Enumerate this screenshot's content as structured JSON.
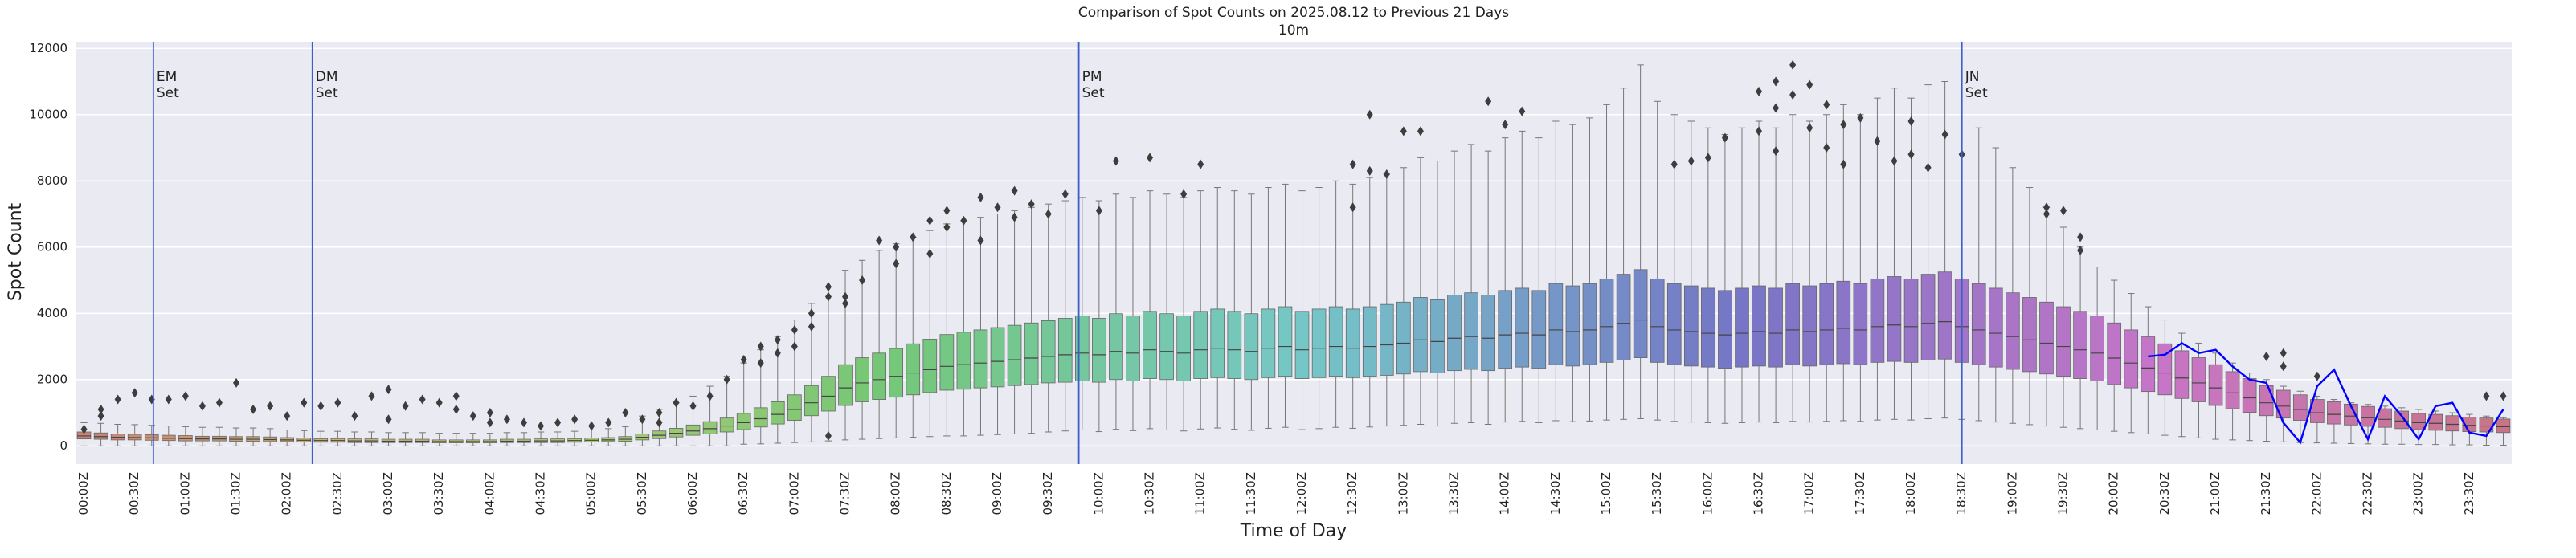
{
  "chart_data": {
    "type": "box",
    "title": "Comparison of Spot Counts on 2025.08.12 to Previous 21 Days",
    "subtitle": "10m",
    "x_label": "Time of Day",
    "y_label": "Spot Count",
    "palette": "husl",
    "grid": true,
    "ylim": [
      -550,
      12200
    ],
    "yticks": [
      0,
      2000,
      4000,
      6000,
      8000,
      10000,
      12000
    ],
    "categories": [
      "00:00Z",
      null,
      null,
      "00:30Z",
      null,
      null,
      "01:00Z",
      null,
      null,
      "01:30Z",
      null,
      null,
      "02:00Z",
      null,
      null,
      "02:30Z",
      null,
      null,
      "03:00Z",
      null,
      null,
      "03:30Z",
      null,
      null,
      "04:00Z",
      null,
      null,
      "04:30Z",
      null,
      null,
      "05:00Z",
      null,
      null,
      "05:30Z",
      null,
      null,
      "06:00Z",
      null,
      null,
      "06:30Z",
      null,
      null,
      "07:00Z",
      null,
      null,
      "07:30Z",
      null,
      null,
      "08:00Z",
      null,
      null,
      "08:30Z",
      null,
      null,
      "09:00Z",
      null,
      null,
      "09:30Z",
      null,
      null,
      "10:00Z",
      null,
      null,
      "10:30Z",
      null,
      null,
      "11:00Z",
      null,
      null,
      "11:30Z",
      null,
      null,
      "12:00Z",
      null,
      null,
      "12:30Z",
      null,
      null,
      "13:00Z",
      null,
      null,
      "13:30Z",
      null,
      null,
      "14:00Z",
      null,
      null,
      "14:30Z",
      null,
      null,
      "15:00Z",
      null,
      null,
      "15:30Z",
      null,
      null,
      "16:00Z",
      null,
      null,
      "16:30Z",
      null,
      null,
      "17:00Z",
      null,
      null,
      "17:30Z",
      null,
      null,
      "18:00Z",
      null,
      null,
      "18:30Z",
      null,
      null,
      "19:00Z",
      null,
      null,
      "19:30Z",
      null,
      null,
      "20:00Z",
      null,
      null,
      "20:30Z",
      null,
      null,
      "21:00Z",
      null,
      null,
      "21:30Z",
      null,
      null,
      "22:00Z",
      null,
      null,
      "22:30Z",
      null,
      null,
      "23:00Z",
      null,
      null,
      "23:30Z",
      null,
      null
    ],
    "whislo": [
      0,
      0,
      0,
      0,
      0,
      0,
      0,
      0,
      0,
      0,
      0,
      0,
      0,
      0,
      0,
      0,
      0,
      0,
      0,
      0,
      0,
      0,
      0,
      0,
      0,
      0,
      0,
      0,
      0,
      0,
      0,
      0,
      0,
      0,
      0,
      0,
      0,
      0,
      0,
      50,
      60,
      80,
      100,
      120,
      150,
      180,
      200,
      220,
      240,
      260,
      280,
      300,
      300,
      320,
      340,
      360,
      380,
      420,
      450,
      480,
      430,
      500,
      460,
      520,
      480,
      450,
      510,
      540,
      500,
      470,
      530,
      560,
      490,
      520,
      560,
      530,
      570,
      600,
      620,
      650,
      600,
      680,
      700,
      650,
      720,
      740,
      700,
      760,
      730,
      750,
      780,
      800,
      820,
      780,
      740,
      720,
      700,
      680,
      700,
      720,
      700,
      740,
      720,
      740,
      760,
      740,
      780,
      800,
      780,
      820,
      840,
      800,
      760,
      720,
      680,
      640,
      600,
      560,
      520,
      480,
      440,
      400,
      360,
      320,
      280,
      240,
      200,
      180,
      160,
      140,
      120,
      100,
      90,
      80,
      70,
      60,
      50,
      50,
      40,
      40,
      30,
      30,
      20,
      20
    ],
    "q1": [
      210,
      200,
      180,
      180,
      170,
      160,
      150,
      150,
      150,
      140,
      140,
      130,
      130,
      120,
      110,
      110,
      100,
      100,
      100,
      100,
      100,
      90,
      90,
      90,
      90,
      100,
      100,
      100,
      100,
      110,
      120,
      130,
      140,
      180,
      220,
      270,
      320,
      360,
      420,
      490,
      570,
      660,
      770,
      910,
      1050,
      1220,
      1330,
      1400,
      1470,
      1540,
      1610,
      1680,
      1710,
      1750,
      1780,
      1820,
      1850,
      1900,
      1920,
      1960,
      1920,
      2000,
      1960,
      2030,
      2000,
      1960,
      2030,
      2060,
      2030,
      2000,
      2060,
      2100,
      2030,
      2060,
      2100,
      2060,
      2100,
      2130,
      2170,
      2240,
      2200,
      2270,
      2310,
      2270,
      2340,
      2380,
      2340,
      2450,
      2410,
      2450,
      2520,
      2590,
      2660,
      2520,
      2450,
      2410,
      2380,
      2340,
      2380,
      2410,
      2380,
      2450,
      2410,
      2450,
      2480,
      2450,
      2520,
      2550,
      2520,
      2590,
      2620,
      2520,
      2450,
      2380,
      2310,
      2240,
      2170,
      2100,
      2030,
      1960,
      1850,
      1750,
      1640,
      1540,
      1430,
      1330,
      1220,
      1120,
      1010,
      910,
      840,
      770,
      700,
      660,
      630,
      590,
      560,
      520,
      490,
      470,
      450,
      430,
      420,
      400
    ],
    "med": [
      300,
      280,
      260,
      250,
      240,
      230,
      220,
      210,
      210,
      200,
      200,
      190,
      180,
      170,
      160,
      160,
      150,
      150,
      140,
      140,
      140,
      130,
      130,
      130,
      130,
      140,
      140,
      150,
      150,
      160,
      170,
      180,
      200,
      260,
      320,
      380,
      450,
      520,
      600,
      700,
      820,
      950,
      1100,
      1300,
      1500,
      1750,
      1900,
      2000,
      2100,
      2200,
      2300,
      2400,
      2450,
      2500,
      2550,
      2600,
      2650,
      2700,
      2750,
      2800,
      2750,
      2850,
      2800,
      2900,
      2850,
      2800,
      2900,
      2950,
      2900,
      2850,
      2950,
      3000,
      2900,
      2950,
      3000,
      2950,
      3000,
      3050,
      3100,
      3200,
      3150,
      3250,
      3300,
      3250,
      3350,
      3400,
      3350,
      3500,
      3450,
      3500,
      3600,
      3700,
      3800,
      3600,
      3500,
      3450,
      3400,
      3350,
      3400,
      3450,
      3400,
      3500,
      3450,
      3500,
      3550,
      3500,
      3600,
      3650,
      3600,
      3700,
      3750,
      3600,
      3500,
      3400,
      3300,
      3200,
      3100,
      3000,
      2900,
      2800,
      2650,
      2500,
      2350,
      2200,
      2050,
      1900,
      1750,
      1600,
      1450,
      1300,
      1200,
      1100,
      1000,
      950,
      900,
      850,
      800,
      750,
      700,
      680,
      650,
      620,
      600,
      580
    ],
    "q3": [
      420,
      390,
      360,
      350,
      340,
      320,
      310,
      290,
      290,
      280,
      280,
      270,
      250,
      240,
      220,
      220,
      210,
      210,
      200,
      200,
      200,
      180,
      180,
      180,
      180,
      200,
      200,
      210,
      210,
      220,
      240,
      250,
      280,
      360,
      450,
      530,
      630,
      730,
      840,
      980,
      1150,
      1330,
      1540,
      1820,
      2100,
      2450,
      2660,
      2800,
      2940,
      3080,
      3220,
      3360,
      3430,
      3500,
      3570,
      3640,
      3710,
      3780,
      3850,
      3920,
      3850,
      3990,
      3920,
      4060,
      3990,
      3920,
      4060,
      4130,
      4060,
      3990,
      4130,
      4200,
      4060,
      4130,
      4200,
      4130,
      4200,
      4270,
      4340,
      4480,
      4410,
      4550,
      4620,
      4550,
      4690,
      4760,
      4690,
      4900,
      4830,
      4900,
      5040,
      5180,
      5320,
      5040,
      4900,
      4830,
      4760,
      4690,
      4760,
      4830,
      4760,
      4900,
      4830,
      4900,
      4970,
      4900,
      5040,
      5110,
      5040,
      5180,
      5250,
      5040,
      4900,
      4760,
      4620,
      4480,
      4340,
      4200,
      4060,
      3920,
      3710,
      3500,
      3290,
      3080,
      2870,
      2660,
      2450,
      2240,
      2030,
      1820,
      1680,
      1540,
      1400,
      1330,
      1260,
      1190,
      1120,
      1050,
      980,
      950,
      910,
      870,
      840,
      810
    ],
    "whishi": [
      700,
      680,
      650,
      640,
      620,
      600,
      580,
      560,
      560,
      540,
      540,
      520,
      480,
      460,
      440,
      440,
      420,
      420,
      400,
      400,
      400,
      380,
      380,
      380,
      380,
      400,
      400,
      420,
      420,
      440,
      480,
      520,
      580,
      900,
      1100,
      1300,
      1500,
      1800,
      2100,
      2500,
      2900,
      3300,
      3800,
      4300,
      4800,
      5300,
      5600,
      5900,
      6100,
      6300,
      6500,
      6700,
      6800,
      6900,
      7000,
      7100,
      7200,
      7300,
      7400,
      7500,
      7400,
      7600,
      7500,
      7700,
      7600,
      7500,
      7700,
      7800,
      7700,
      7600,
      7800,
      7900,
      7700,
      7800,
      8000,
      7900,
      8100,
      8200,
      8400,
      8700,
      8600,
      8900,
      9100,
      8900,
      9300,
      9500,
      9300,
      9800,
      9700,
      9900,
      10300,
      10800,
      11500,
      10400,
      10000,
      9800,
      9600,
      9400,
      9600,
      9800,
      9600,
      10000,
      9800,
      10000,
      10300,
      10000,
      10500,
      10800,
      10500,
      10900,
      11000,
      10200,
      9600,
      9000,
      8400,
      7800,
      7200,
      6600,
      6000,
      5400,
      5000,
      4600,
      4200,
      3800,
      3400,
      3100,
      2800,
      2500,
      2200,
      2000,
      1800,
      1650,
      1500,
      1400,
      1300,
      1250,
      1200,
      1150,
      1100,
      1050,
      1000,
      950,
      900,
      850
    ],
    "fliers": [
      [
        500
      ],
      [
        1100,
        900
      ],
      [
        1400
      ],
      [
        1600
      ],
      [
        1400
      ],
      [
        1400
      ],
      [
        1500
      ],
      [
        1200
      ],
      [
        1300
      ],
      [
        1900
      ],
      [
        1100
      ],
      [
        1200
      ],
      [
        900
      ],
      [
        1300
      ],
      [
        1200
      ],
      [
        1300
      ],
      [
        900
      ],
      [
        1500
      ],
      [
        1700,
        800
      ],
      [
        1200
      ],
      [
        1400
      ],
      [
        1300
      ],
      [
        1500,
        1100
      ],
      [
        900
      ],
      [
        1000,
        700
      ],
      [
        800
      ],
      [
        700
      ],
      [
        600
      ],
      [
        700
      ],
      [
        800
      ],
      [
        600
      ],
      [
        700
      ],
      [
        1000
      ],
      [
        800
      ],
      [
        1000,
        700
      ],
      [
        1300
      ],
      [
        1200
      ],
      [
        1500
      ],
      [
        2000
      ],
      [
        2600
      ],
      [
        3000,
        2500
      ],
      [
        3200,
        2800
      ],
      [
        3500,
        3000
      ],
      [
        4000,
        3600
      ],
      [
        4800,
        4500,
        300
      ],
      [
        4500,
        4300
      ],
      [
        5000
      ],
      [
        6200
      ],
      [
        6000,
        5500
      ],
      [
        6300
      ],
      [
        6800,
        5800
      ],
      [
        7100,
        6600
      ],
      [
        6800
      ],
      [
        7500,
        6200
      ],
      [
        7200
      ],
      [
        7700,
        6900
      ],
      [
        7300
      ],
      [
        7000
      ],
      [
        7600
      ],
      [],
      [
        7100
      ],
      [
        8600
      ],
      [],
      [
        8700
      ],
      [],
      [
        7600
      ],
      [
        8500
      ],
      [],
      [],
      [],
      [],
      [],
      [],
      [],
      [],
      [
        8500,
        7200
      ],
      [
        10000,
        8300
      ],
      [
        8200
      ],
      [
        9500
      ],
      [
        9500
      ],
      [],
      [],
      [],
      [
        10400
      ],
      [
        9700
      ],
      [
        10100
      ],
      [],
      [],
      [],
      [],
      [],
      [],
      [],
      [],
      [
        8500
      ],
      [
        8600
      ],
      [
        8700
      ],
      [
        9300
      ],
      [],
      [
        10700,
        9500
      ],
      [
        11000,
        10200,
        8900
      ],
      [
        11500,
        10600
      ],
      [
        10900,
        9600
      ],
      [
        10300,
        9000
      ],
      [
        9700,
        8500
      ],
      [
        9900
      ],
      [
        9200
      ],
      [
        8600
      ],
      [
        9800,
        8800
      ],
      [
        8400
      ],
      [
        9400
      ],
      [
        8800
      ],
      [],
      [],
      [],
      [],
      [
        7200,
        7000
      ],
      [
        7100
      ],
      [
        6300,
        5900
      ],
      [],
      [],
      [],
      [],
      [],
      [],
      [],
      [],
      [],
      [],
      [
        2700
      ],
      [
        2800,
        2400
      ],
      [],
      [
        2100
      ],
      [],
      [],
      [],
      [],
      [],
      [],
      [],
      [],
      [],
      [
        1500
      ],
      [
        1500
      ]
    ],
    "today": {
      "color": "#0000ff",
      "values": [
        null,
        null,
        null,
        null,
        null,
        null,
        null,
        null,
        null,
        null,
        null,
        null,
        null,
        null,
        null,
        null,
        null,
        null,
        null,
        null,
        null,
        null,
        null,
        null,
        null,
        null,
        null,
        null,
        null,
        null,
        null,
        null,
        null,
        null,
        null,
        null,
        null,
        null,
        null,
        null,
        null,
        null,
        null,
        null,
        null,
        null,
        null,
        null,
        null,
        null,
        null,
        null,
        null,
        null,
        null,
        null,
        null,
        null,
        null,
        null,
        null,
        null,
        null,
        null,
        null,
        null,
        null,
        null,
        null,
        null,
        null,
        null,
        null,
        null,
        null,
        null,
        null,
        null,
        null,
        null,
        null,
        null,
        null,
        null,
        null,
        null,
        null,
        null,
        null,
        null,
        null,
        null,
        null,
        null,
        null,
        null,
        null,
        null,
        null,
        null,
        null,
        null,
        null,
        null,
        null,
        null,
        null,
        null,
        null,
        null,
        null,
        null,
        null,
        null,
        null,
        null,
        null,
        null,
        null,
        null,
        null,
        null,
        2700,
        2750,
        3100,
        2800,
        2900,
        2400,
        2000,
        1900,
        700,
        100,
        1800,
        2300,
        1200,
        200,
        1500,
        900,
        200,
        1200,
        1300,
        400,
        300,
        1100
      ]
    },
    "annotations": [
      {
        "lines": [
          "EM",
          "Set"
        ],
        "x": 4.1,
        "color": "#3a5fcd"
      },
      {
        "lines": [
          "DM",
          "Set"
        ],
        "x": 13.5,
        "color": "#3a5fcd"
      },
      {
        "lines": [
          "PM",
          "Set"
        ],
        "x": 58.8,
        "color": "#3a5fcd"
      },
      {
        "lines": [
          "JN",
          "Set"
        ],
        "x": 111.0,
        "color": "#3a5fcd"
      }
    ]
  }
}
